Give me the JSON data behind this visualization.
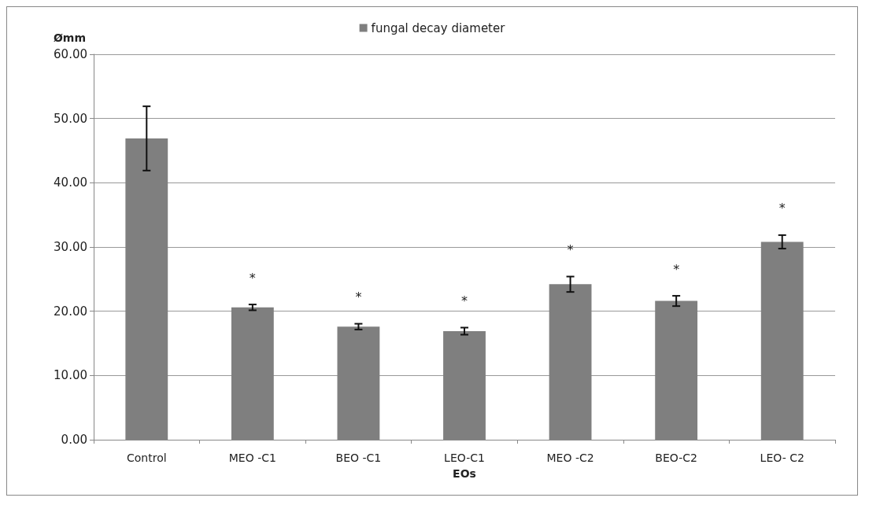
{
  "chart_data": {
    "type": "bar",
    "xlabel": "EOs",
    "ylabel": "Ømm",
    "categories": [
      "Control",
      "MEO -C1",
      "BEO -C1",
      "LEO-C1",
      "MEO -C2",
      "BEO-C2",
      "LEO- C2"
    ],
    "series": [
      {
        "name": "fungal decay diameter",
        "color": "#7f7f7f",
        "values": [
          46.9,
          20.6,
          17.6,
          16.9,
          24.2,
          21.6,
          30.8
        ],
        "errors": [
          5,
          0.45,
          0.45,
          0.55,
          1.2,
          0.8,
          1.05
        ],
        "value_labels": [
          null,
          "*",
          "*",
          "*",
          "*",
          "*",
          "*"
        ]
      }
    ],
    "ylim": [
      0,
      60
    ],
    "yticks": [
      {
        "value": 0,
        "label": "0.00"
      },
      {
        "value": 10,
        "label": "10.00"
      },
      {
        "value": 20,
        "label": "20.00"
      },
      {
        "value": 30,
        "label": "30.00"
      },
      {
        "value": 40,
        "label": "40.00"
      },
      {
        "value": 50,
        "label": "50.00"
      },
      {
        "value": 60,
        "label": "60.00"
      }
    ],
    "grid": "y",
    "legend": "top"
  }
}
